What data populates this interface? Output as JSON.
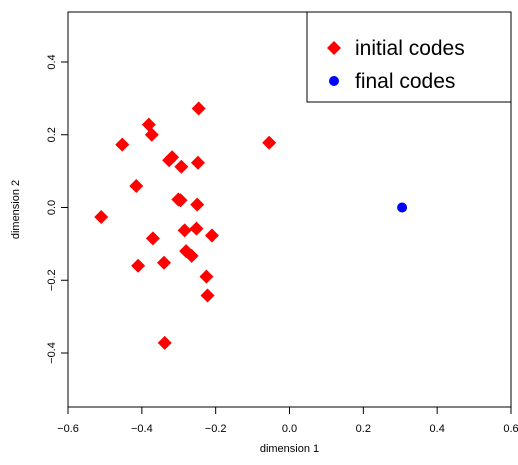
{
  "chart_data": {
    "type": "scatter",
    "title": "",
    "xlabel": "dimension 1",
    "ylabel": "dimension 2",
    "xlim": [
      -0.6,
      0.6
    ],
    "ylim": [
      -0.4,
      0.4
    ],
    "xticks": [
      -0.6,
      -0.4,
      -0.2,
      0.0,
      0.2,
      0.4,
      0.6
    ],
    "xtick_labels": [
      "−0.6",
      "−0.4",
      "−0.2",
      "0.0",
      "0.2",
      "0.4",
      "0.6"
    ],
    "yticks": [
      -0.4,
      -0.2,
      0.0,
      0.2,
      0.4
    ],
    "ytick_labels": [
      "−0.4",
      "−0.2",
      "0.0",
      "0.2",
      "0.4"
    ],
    "grid": false,
    "legend_position": "top-right",
    "series": [
      {
        "name": "initial codes",
        "marker": "diamond",
        "color": "#ff0000",
        "points": [
          {
            "x": -0.246,
            "y": 0.272
          },
          {
            "x": -0.381,
            "y": 0.228
          },
          {
            "x": -0.373,
            "y": 0.2
          },
          {
            "x": -0.453,
            "y": 0.173
          },
          {
            "x": -0.055,
            "y": 0.178
          },
          {
            "x": -0.318,
            "y": 0.138
          },
          {
            "x": -0.326,
            "y": 0.13
          },
          {
            "x": -0.248,
            "y": 0.123
          },
          {
            "x": -0.293,
            "y": 0.112
          },
          {
            "x": -0.415,
            "y": 0.059
          },
          {
            "x": -0.301,
            "y": 0.022
          },
          {
            "x": -0.295,
            "y": 0.02
          },
          {
            "x": -0.25,
            "y": 0.008
          },
          {
            "x": -0.51,
            "y": -0.026
          },
          {
            "x": -0.252,
            "y": -0.058
          },
          {
            "x": -0.284,
            "y": -0.063
          },
          {
            "x": -0.21,
            "y": -0.077
          },
          {
            "x": -0.37,
            "y": -0.085
          },
          {
            "x": -0.28,
            "y": -0.12
          },
          {
            "x": -0.265,
            "y": -0.133
          },
          {
            "x": -0.34,
            "y": -0.152
          },
          {
            "x": -0.41,
            "y": -0.16
          },
          {
            "x": -0.225,
            "y": -0.19
          },
          {
            "x": -0.222,
            "y": -0.242
          },
          {
            "x": -0.338,
            "y": -0.372
          }
        ]
      },
      {
        "name": "final codes",
        "marker": "circle",
        "color": "#0000ff",
        "points": [
          {
            "x": 0.305,
            "y": 0.0
          }
        ]
      }
    ]
  }
}
